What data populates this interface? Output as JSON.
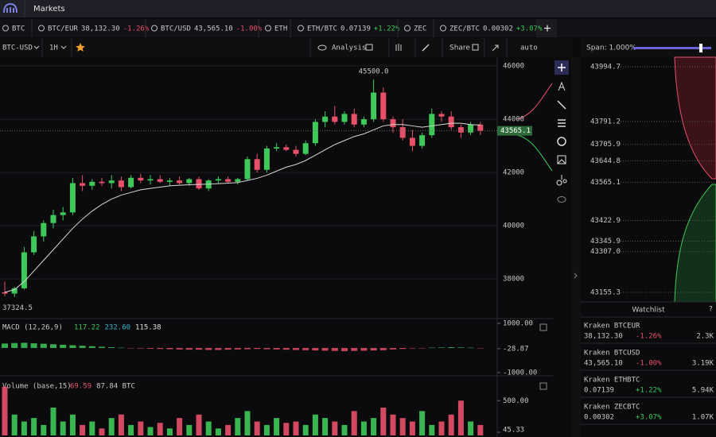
{
  "top_bar": {
    "title": "Markets"
  },
  "tabs": [
    {
      "symbol": "BTC"
    },
    {
      "symbol": "BTC/EUR",
      "price": "38,132.30",
      "change": "-1.26%"
    },
    {
      "symbol": "BTC/USD",
      "price": "43,565.10",
      "change": "-1.00%"
    },
    {
      "symbol": "ETH"
    },
    {
      "symbol": "ETH/BTC",
      "price": "0.07139",
      "change": "+1.22%"
    },
    {
      "symbol": "ZEC"
    },
    {
      "symbol": "ZEC/BTC",
      "price": "0.00302",
      "change": "+3.07%"
    }
  ],
  "toolbar": {
    "pair": "BTC-USD",
    "interval": "1H",
    "analysis": "Analysis",
    "share": "Share",
    "scale": "auto"
  },
  "price_chart": {
    "candles": [
      [
        37500,
        37900,
        37350,
        37450
      ],
      [
        37450,
        37700,
        37324.5,
        37650
      ],
      [
        37650,
        39200,
        37600,
        39000
      ],
      [
        39000,
        39800,
        38900,
        39600
      ],
      [
        39600,
        40200,
        39400,
        40100
      ],
      [
        40100,
        40600,
        39900,
        40400
      ],
      [
        40400,
        40700,
        40200,
        40500
      ],
      [
        40500,
        41800,
        40400,
        41600
      ],
      [
        41600,
        41900,
        41300,
        41500
      ],
      [
        41500,
        41750,
        41350,
        41650
      ],
      [
        41650,
        41800,
        41500,
        41600
      ],
      [
        41600,
        41900,
        41400,
        41700
      ],
      [
        41700,
        41850,
        41300,
        41450
      ],
      [
        41450,
        41900,
        41400,
        41800
      ],
      [
        41800,
        41950,
        41600,
        41700
      ],
      [
        41700,
        41900,
        41550,
        41750
      ],
      [
        41750,
        41900,
        41600,
        41650
      ],
      [
        41650,
        41800,
        41500,
        41700
      ],
      [
        41700,
        41850,
        41550,
        41600
      ],
      [
        41600,
        41800,
        41500,
        41750
      ],
      [
        41750,
        41850,
        41350,
        41400
      ],
      [
        41400,
        41750,
        41300,
        41700
      ],
      [
        41700,
        41850,
        41600,
        41750
      ],
      [
        41750,
        41850,
        41600,
        41650
      ],
      [
        41650,
        41800,
        41550,
        41750
      ],
      [
        41750,
        42600,
        41700,
        42500
      ],
      [
        42500,
        42700,
        42000,
        42100
      ],
      [
        42100,
        43000,
        42000,
        42900
      ],
      [
        42900,
        43100,
        42800,
        42950
      ],
      [
        42950,
        43050,
        42800,
        42850
      ],
      [
        42850,
        43000,
        42600,
        42700
      ],
      [
        42700,
        43200,
        42650,
        43100
      ],
      [
        43100,
        44000,
        43000,
        43900
      ],
      [
        43900,
        44300,
        43700,
        44100
      ],
      [
        44100,
        44500,
        43800,
        43900
      ],
      [
        43900,
        44300,
        43800,
        44200
      ],
      [
        44200,
        44400,
        43700,
        43800
      ],
      [
        43800,
        44100,
        43700,
        44000
      ],
      [
        44000,
        45500,
        43900,
        45000
      ],
      [
        45000,
        45200,
        43900,
        44000
      ],
      [
        44000,
        44100,
        43500,
        43700
      ],
      [
        43700,
        44000,
        43200,
        43300
      ],
      [
        43300,
        43600,
        42800,
        43000
      ],
      [
        43000,
        43500,
        42900,
        43400
      ],
      [
        43400,
        44400,
        43300,
        44200
      ],
      [
        44200,
        44300,
        43900,
        44100
      ],
      [
        44100,
        44300,
        43600,
        43700
      ],
      [
        43700,
        43800,
        43300,
        43500
      ],
      [
        43500,
        43900,
        43400,
        43800
      ],
      [
        43800,
        43900,
        43400,
        43565.1
      ]
    ],
    "ma": [
      37500,
      37600,
      37900,
      38300,
      38700,
      39100,
      39500,
      39900,
      40250,
      40550,
      40800,
      41000,
      41150,
      41250,
      41350,
      41400,
      41450,
      41500,
      41520,
      41540,
      41550,
      41560,
      41580,
      41600,
      41620,
      41700,
      41780,
      41900,
      42050,
      42200,
      42300,
      42450,
      42650,
      42850,
      43050,
      43200,
      43350,
      43450,
      43600,
      43750,
      43800,
      43800,
      43750,
      43700,
      43750,
      43800,
      43850,
      43850,
      43800,
      43780
    ],
    "ylim": [
      36540,
      46330
    ],
    "yticks": [
      38000,
      40000,
      42000,
      44000,
      46000
    ],
    "high_label": "45500.0",
    "low_label": "37324.5",
    "last_price": "43565.1"
  },
  "macd": {
    "title": "MACD (12,26,9)",
    "values": [
      "117.22",
      "232.60",
      "115.38"
    ],
    "histogram": [
      180,
      200,
      210,
      190,
      170,
      150,
      130,
      110,
      90,
      70,
      50,
      30,
      10,
      -10,
      -20,
      -30,
      -40,
      -50,
      -60,
      -70,
      -70,
      -80,
      -80,
      -70,
      -60,
      -50,
      -40,
      -50,
      -60,
      -70,
      -80,
      -90,
      -100,
      -110,
      -120,
      -130,
      -120,
      -110,
      -100,
      -90,
      -60,
      -40,
      -20,
      -10,
      10,
      20,
      30,
      20,
      10,
      -10
    ],
    "ylim": [
      -1100,
      1160
    ],
    "yticks": [
      {
        "value": 1000,
        "label": "1000.00"
      },
      -28.87,
      {
        "value": -1000,
        "label": "-1000.00"
      }
    ]
  },
  "volume": {
    "title": "Volume (base,15)",
    "values": [
      "69.59",
      "87.84 BTC"
    ],
    "bars": [
      700,
      300,
      200,
      250,
      150,
      400,
      200,
      300,
      150,
      200,
      100,
      250,
      300,
      150,
      200,
      120,
      180,
      100,
      250,
      150,
      300,
      200,
      100,
      150,
      250,
      350,
      200,
      150,
      250,
      180,
      200,
      150,
      300,
      250,
      200,
      150,
      350,
      200,
      250,
      400,
      300,
      250,
      200,
      350,
      150,
      200,
      300,
      500,
      200,
      150
    ],
    "ylim": [
      0,
      800
    ],
    "yticks": [
      {
        "value": 500,
        "label": "500.00"
      },
      45.33
    ]
  },
  "order_book": {
    "span": "Span: 1.000%",
    "ylim": [
      43120,
      44030
    ],
    "levels": [
      43994.7,
      43791.2,
      43705.9,
      43644.8,
      43565.1,
      43422.9,
      43345.9,
      {
        "value": 43307,
        "label": "43307.0"
      },
      43155.3
    ]
  },
  "watchlist": {
    "title": "Watchlist",
    "help": "?",
    "rows": [
      {
        "name": "Kraken BTCEUR",
        "price": "38,132.30",
        "change": "-1.26%",
        "volume": "2.3K"
      },
      {
        "name": "Kraken BTCUSD",
        "price": "43,565.10",
        "change": "-1.00%",
        "volume": "3.19K"
      },
      {
        "name": "Kraken ETHBTC",
        "price": "0.07139",
        "change": "+1.22%",
        "volume": "5.94K"
      },
      {
        "name": "Kraken ZECBTC",
        "price": "0.00302",
        "change": "+3.07%",
        "volume": "1.07K"
      }
    ]
  }
}
